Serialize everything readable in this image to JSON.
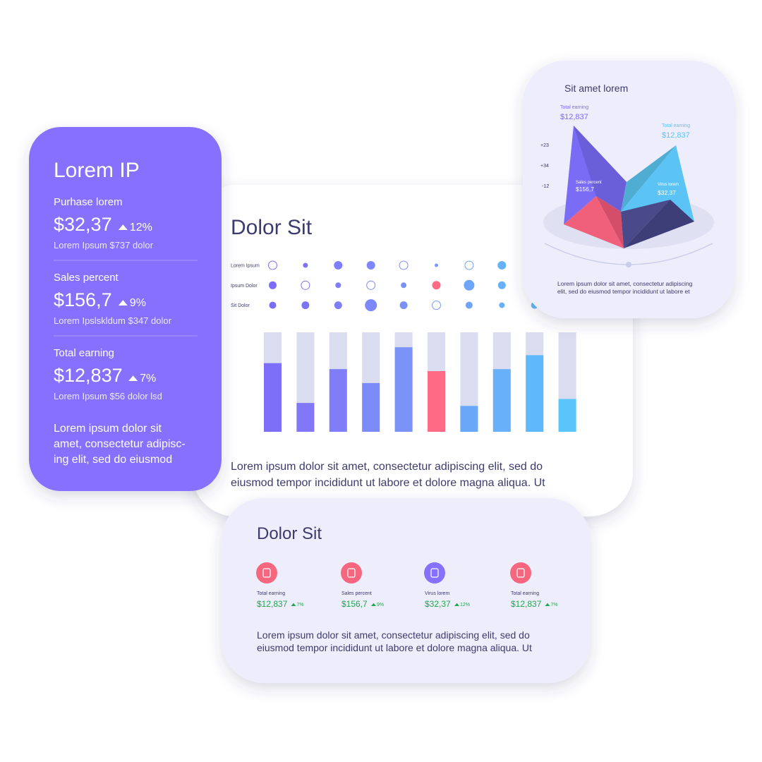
{
  "summary_card": {
    "title": "Lorem IP",
    "stats": [
      {
        "label": "Purhase lorem",
        "value": "$32,37",
        "change": "12%",
        "note": "Lorem Ipsum $737 dolor"
      },
      {
        "label": "Sales percent",
        "value": "$156,7",
        "change": "9%",
        "note": "Lorem Ipslskldum $347 dolor"
      },
      {
        "label": "Total earning",
        "value": "$12,837",
        "change": "7%",
        "note": "Lorem Ipsum $56 dolor lsd"
      }
    ],
    "text_lines": [
      "Lorem ipsum dolor sit",
      "amet, consectetur adipisc-",
      "ing elit, sed do eiusmod"
    ]
  },
  "main_card": {
    "title": "Dolor Sit",
    "dot_colors": [
      "#7b6cf6",
      "#7d72f6",
      "#7f7df7",
      "#7c88f7",
      "#7a92f6",
      "#7a9af6",
      "#6ea5f8",
      "#66b0fa",
      "#5fb8fb"
    ],
    "highlight_color": "#ff6b85",
    "dot_rows": [
      {
        "label": "Lorem Ipsum",
        "dots": [
          {
            "value": 6,
            "style": "hollow"
          },
          {
            "value": 3.5,
            "style": "filled"
          },
          {
            "value": 6,
            "style": "filled"
          },
          {
            "value": 6,
            "style": "filled"
          },
          {
            "value": 6,
            "style": "hollow"
          },
          {
            "value": 2.5,
            "style": "filled"
          },
          {
            "value": 6,
            "style": "hollow"
          },
          {
            "value": 6,
            "style": "filled"
          }
        ]
      },
      {
        "label": "Ipsum Dolor",
        "dots": [
          {
            "value": 5.5,
            "style": "filled"
          },
          {
            "value": 6,
            "style": "hollow"
          },
          {
            "value": 4,
            "style": "filled"
          },
          {
            "value": 6,
            "style": "hollow"
          },
          {
            "value": 4,
            "style": "filled"
          },
          {
            "value": 6,
            "style": "highlight"
          },
          {
            "value": 7.5,
            "style": "filled"
          },
          {
            "value": 5.5,
            "style": "filled"
          }
        ]
      },
      {
        "label": "Sit Dolor",
        "dots": [
          {
            "value": 5,
            "style": "filled"
          },
          {
            "value": 5.5,
            "style": "filled"
          },
          {
            "value": 5.5,
            "style": "filled"
          },
          {
            "value": 8.5,
            "style": "filled"
          },
          {
            "value": 5.5,
            "style": "filled"
          },
          {
            "value": 6,
            "style": "hollow"
          },
          {
            "value": 5,
            "style": "filled"
          },
          {
            "value": 4,
            "style": "filled"
          },
          {
            "value": 5,
            "style": "filled"
          }
        ]
      }
    ],
    "bars": {
      "ylim": [
        0,
        100
      ],
      "track_color": "#d9ddef",
      "colors": [
        "#7d6ff7",
        "#8177f7",
        "#7f7ef8",
        "#7c8bf8",
        "#7b93f6",
        "#ff6b85",
        "#69a8f9",
        "#69b0fb",
        "#5fb8fb",
        "#5ac5fb"
      ],
      "values": [
        69,
        29,
        63,
        49,
        85,
        61,
        26,
        63,
        77,
        33
      ]
    },
    "text_lines": [
      "Lorem ipsum dolor sit amet, consectetur adipiscing elit, sed do",
      "eiusmod tempor incididunt ut labore et dolore magna aliqua. Ut"
    ]
  },
  "chart_card": {
    "title": "Sit amet lorem",
    "ticks": [
      "+23",
      "+34",
      "-12"
    ],
    "labels": [
      {
        "name": "Total earning",
        "value": "$12,837"
      },
      {
        "name": "Total earning",
        "value": "$12,837"
      },
      {
        "name": "Sales percent",
        "value": "$156,7"
      },
      {
        "name": "Virus lorem",
        "value": "$32,37"
      }
    ],
    "text_lines": [
      "Lorem ipsum dolor sit amet, consectetur adipiscing",
      "elit, sed do eiusmod tempor incididunt ut labore et"
    ]
  },
  "stats_card": {
    "title": "Dolor Sit",
    "items": [
      {
        "label": "Total earning",
        "value": "$12,837",
        "change": "7%"
      },
      {
        "label": "Sales percent",
        "value": "$156,7",
        "change": "9%"
      },
      {
        "label": "Virus lorem",
        "value": "$32,37",
        "change": "12%"
      },
      {
        "label": "Total earning",
        "value": "$12,837",
        "change": "7%"
      }
    ],
    "text_lines": [
      "Lorem ipsum dolor sit amet, consectetur adipiscing elit, sed do",
      "eiusmod tempor incididunt ut labore et dolore magna aliqua. Ut"
    ]
  }
}
